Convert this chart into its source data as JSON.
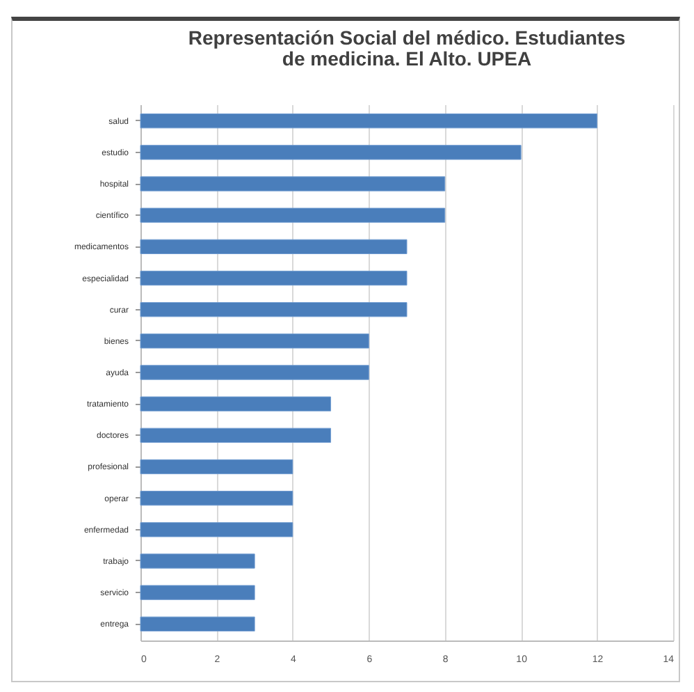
{
  "chart_data": {
    "type": "bar",
    "orientation": "horizontal",
    "title": "Representación Social del médico. Estudiantes de medicina. El Alto. UPEA",
    "categories": [
      "salud",
      "estudio",
      "hospital",
      "científico",
      "medicamentos",
      "especialidad",
      "curar",
      "bienes",
      "ayuda",
      "tratamiento",
      "doctores",
      "profesional",
      "operar",
      "enfermedad",
      "trabajo",
      "servicio",
      "entrega"
    ],
    "values": [
      12,
      10,
      8,
      8,
      7,
      7,
      7,
      6,
      6,
      5,
      5,
      4,
      4,
      4,
      3,
      3,
      3
    ],
    "color": "#4a7ebb",
    "xlim": [
      0,
      14
    ],
    "xticks": [
      0,
      2,
      4,
      6,
      8,
      10,
      12,
      14
    ],
    "grid": "x"
  }
}
